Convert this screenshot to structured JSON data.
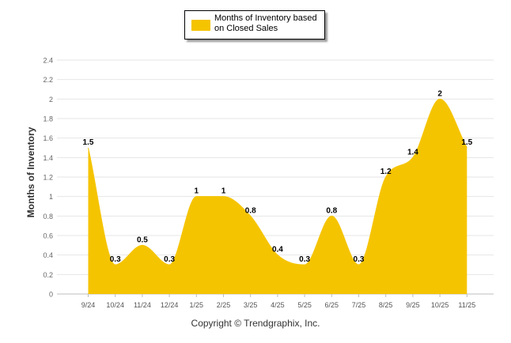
{
  "chart_data": {
    "type": "area",
    "categories": [
      "9/24",
      "10/24",
      "11/24",
      "12/24",
      "1/25",
      "2/25",
      "3/25",
      "4/25",
      "5/25",
      "6/25",
      "7/25",
      "8/25",
      "9/25",
      "10/25",
      "11/25"
    ],
    "series": [
      {
        "name": "Months of Inventory based on Closed Sales",
        "values": [
          1.5,
          0.3,
          0.5,
          0.3,
          1,
          1,
          0.8,
          0.4,
          0.3,
          0.8,
          0.3,
          1.2,
          1.4,
          2,
          1.5
        ],
        "color": "#F5C400"
      }
    ],
    "ylabel": "Months of Inventory",
    "xlabel": "",
    "ylim": [
      0,
      2.4
    ],
    "yticks": [
      "0",
      "0.2",
      "0.4",
      "0.6",
      "0.8",
      "1",
      "1.2",
      "1.4",
      "1.6",
      "1.8",
      "2",
      "2.2",
      "2.4"
    ],
    "grid": true,
    "legend_position": "top-center",
    "data_labels": [
      "1.5",
      "0.3",
      "0.5",
      "0.3",
      "1",
      "1",
      "0.8",
      "0.4",
      "0.3",
      "0.8",
      "0.3",
      "1.2",
      "1.4",
      "2",
      "1.5"
    ]
  },
  "legend": {
    "label": "Months of Inventory based on Closed Sales",
    "color": "#F5C400"
  },
  "credit": "Copyright © Trendgraphix, Inc."
}
